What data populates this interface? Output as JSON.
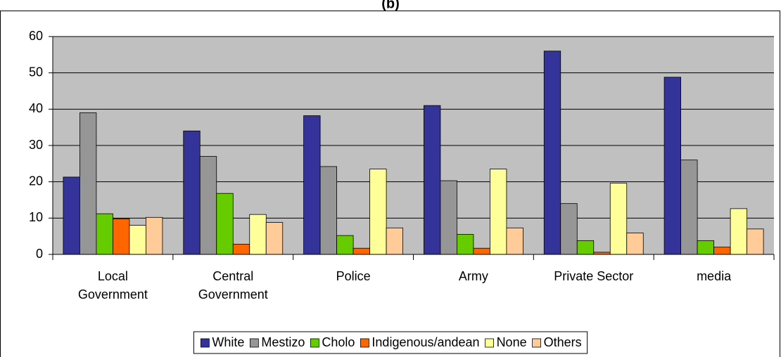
{
  "chart_data": {
    "type": "bar",
    "title": "(b)",
    "categories": [
      "Local Government",
      "Central Government",
      "Police",
      "Army",
      "Private Sector",
      "media"
    ],
    "series": [
      {
        "name": "White",
        "color": "#333399",
        "values": [
          21.3,
          34,
          38.2,
          41,
          56,
          48.8
        ]
      },
      {
        "name": "Mestizo",
        "color": "#969696",
        "values": [
          39,
          27,
          24.2,
          20.3,
          14,
          26
        ]
      },
      {
        "name": "Cholo",
        "color": "#66cc00",
        "values": [
          11.2,
          16.8,
          5.2,
          5.5,
          3.8,
          3.8
        ]
      },
      {
        "name": "Indigenous/andean",
        "color": "#ff6600",
        "values": [
          9.8,
          2.8,
          1.7,
          1.7,
          0.6,
          2
        ]
      },
      {
        "name": "None",
        "color": "#ffff99",
        "values": [
          8,
          11,
          23.5,
          23.5,
          19.6,
          12.6
        ]
      },
      {
        "name": "Others",
        "color": "#ffcc99",
        "values": [
          10.2,
          8.8,
          7.3,
          7.3,
          5.9,
          7
        ]
      }
    ],
    "ylim": [
      0,
      60
    ],
    "yticks": [
      0,
      10,
      20,
      30,
      40,
      50,
      60
    ],
    "grid": true,
    "legend": "bottom"
  }
}
